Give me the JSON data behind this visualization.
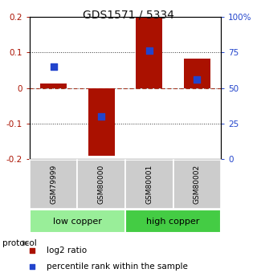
{
  "title": "GDS1571 / 5334",
  "samples": [
    "GSM79999",
    "GSM80000",
    "GSM80001",
    "GSM80002"
  ],
  "log2_ratios": [
    0.012,
    -0.19,
    0.197,
    0.082
  ],
  "percentile_ranks": [
    0.65,
    0.3,
    0.76,
    0.56
  ],
  "ylim_left": [
    -0.2,
    0.2
  ],
  "ylim_right": [
    0,
    1.0
  ],
  "yticks_left": [
    -0.2,
    -0.1,
    0.0,
    0.1,
    0.2
  ],
  "yticks_right": [
    0.0,
    0.25,
    0.5,
    0.75,
    1.0
  ],
  "ytick_labels_right": [
    "0",
    "25",
    "50",
    "75",
    "100%"
  ],
  "groups": [
    {
      "label": "low copper",
      "samples": [
        0,
        1
      ],
      "color": "#99ee99"
    },
    {
      "label": "high copper",
      "samples": [
        2,
        3
      ],
      "color": "#44cc44"
    }
  ],
  "bar_color": "#aa1100",
  "dot_color": "#2244cc",
  "bar_width": 0.55,
  "dot_size": 28,
  "bg_color": "#ffffff",
  "zero_line_color": "#cc2200",
  "sample_box_color": "#cccccc",
  "protocol_text": "protocol",
  "legend_ratio_label": "log2 ratio",
  "legend_pct_label": "percentile rank within the sample",
  "title_fontsize": 10,
  "tick_fontsize": 7.5,
  "sample_fontsize": 6.5,
  "group_fontsize": 8,
  "legend_fontsize": 7.5
}
